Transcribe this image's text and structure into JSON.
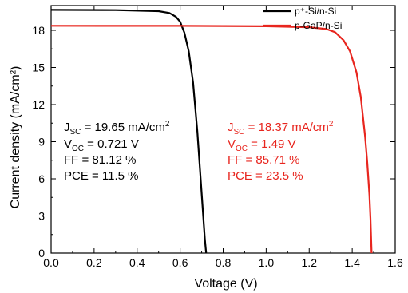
{
  "chart_data": {
    "type": "line",
    "xlabel": "Voltage (V)",
    "ylabel": "Current density (mA/cm²)",
    "xlim": [
      0.0,
      1.6
    ],
    "ylim": [
      0,
      20
    ],
    "x_ticks": [
      0.0,
      0.2,
      0.4,
      0.6,
      0.8,
      1.0,
      1.2,
      1.4,
      1.6
    ],
    "x_tick_labels": [
      "0.0",
      "0.2",
      "0.4",
      "0.6",
      "0.8",
      "1.0",
      "1.2",
      "1.4",
      "1.6"
    ],
    "y_ticks": [
      0,
      3,
      6,
      9,
      12,
      15,
      18
    ],
    "y_tick_labels": [
      "0",
      "3",
      "6",
      "9",
      "12",
      "15",
      "18"
    ],
    "grid": false,
    "legend_position": "top-right",
    "series": [
      {
        "name": "p⁺-Si/n-Si",
        "color": "#000000",
        "x": [
          0.0,
          0.3,
          0.5,
          0.55,
          0.58,
          0.6,
          0.62,
          0.64,
          0.66,
          0.68,
          0.69,
          0.7,
          0.71,
          0.715,
          0.721
        ],
        "y": [
          19.65,
          19.63,
          19.55,
          19.4,
          19.1,
          18.7,
          17.8,
          16.3,
          13.8,
          9.8,
          7.3,
          4.8,
          2.3,
          1.1,
          0.0
        ]
      },
      {
        "name": "p-GaP/n-Si",
        "color": "#e8261f",
        "x": [
          0.0,
          0.6,
          1.0,
          1.2,
          1.28,
          1.32,
          1.36,
          1.39,
          1.42,
          1.44,
          1.46,
          1.47,
          1.48,
          1.485,
          1.49
        ],
        "y": [
          18.37,
          18.36,
          18.33,
          18.25,
          18.1,
          17.85,
          17.2,
          16.3,
          14.6,
          12.6,
          9.4,
          7.3,
          4.7,
          2.8,
          0.0
        ]
      }
    ],
    "annotations": [
      {
        "color": "#000000",
        "jsc": {
          "prefix": "J",
          "sub": "SC",
          "rest": " = 19.65 mA/cm",
          "sup": "2"
        },
        "voc": {
          "prefix": "V",
          "sub": "OC",
          "rest": " = 0.721 V"
        },
        "ff": "FF = 81.12 %",
        "pce": "PCE = 11.5 %"
      },
      {
        "color": "#e8261f",
        "jsc": {
          "prefix": "J",
          "sub": "SC",
          "rest": " = 18.37 mA/cm",
          "sup": "2"
        },
        "voc": {
          "prefix": "V",
          "sub": "OC",
          "rest": " = 1.49 V"
        },
        "ff": "FF = 85.71 %",
        "pce": "PCE = 23.5 %"
      }
    ]
  }
}
